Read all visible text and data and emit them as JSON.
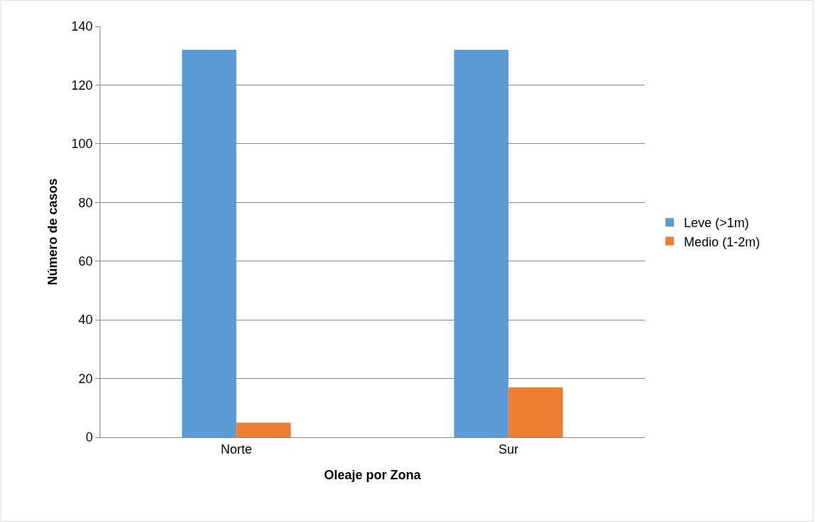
{
  "chart_data": {
    "type": "bar",
    "xlabel": "Oleaje por Zona",
    "ylabel": "Número de casos",
    "categories": [
      "Norte",
      "Sur"
    ],
    "series": [
      {
        "name": "Leve (>1m)",
        "color": "#5b9bd5",
        "values": [
          132,
          132
        ]
      },
      {
        "name": "Medio (1-2m)",
        "color": "#ed7d31",
        "values": [
          5,
          17
        ]
      }
    ],
    "ylim": [
      0,
      140
    ],
    "yticks": [
      0,
      20,
      40,
      60,
      80,
      100,
      120,
      140
    ],
    "grid": "y",
    "legend": "right"
  }
}
